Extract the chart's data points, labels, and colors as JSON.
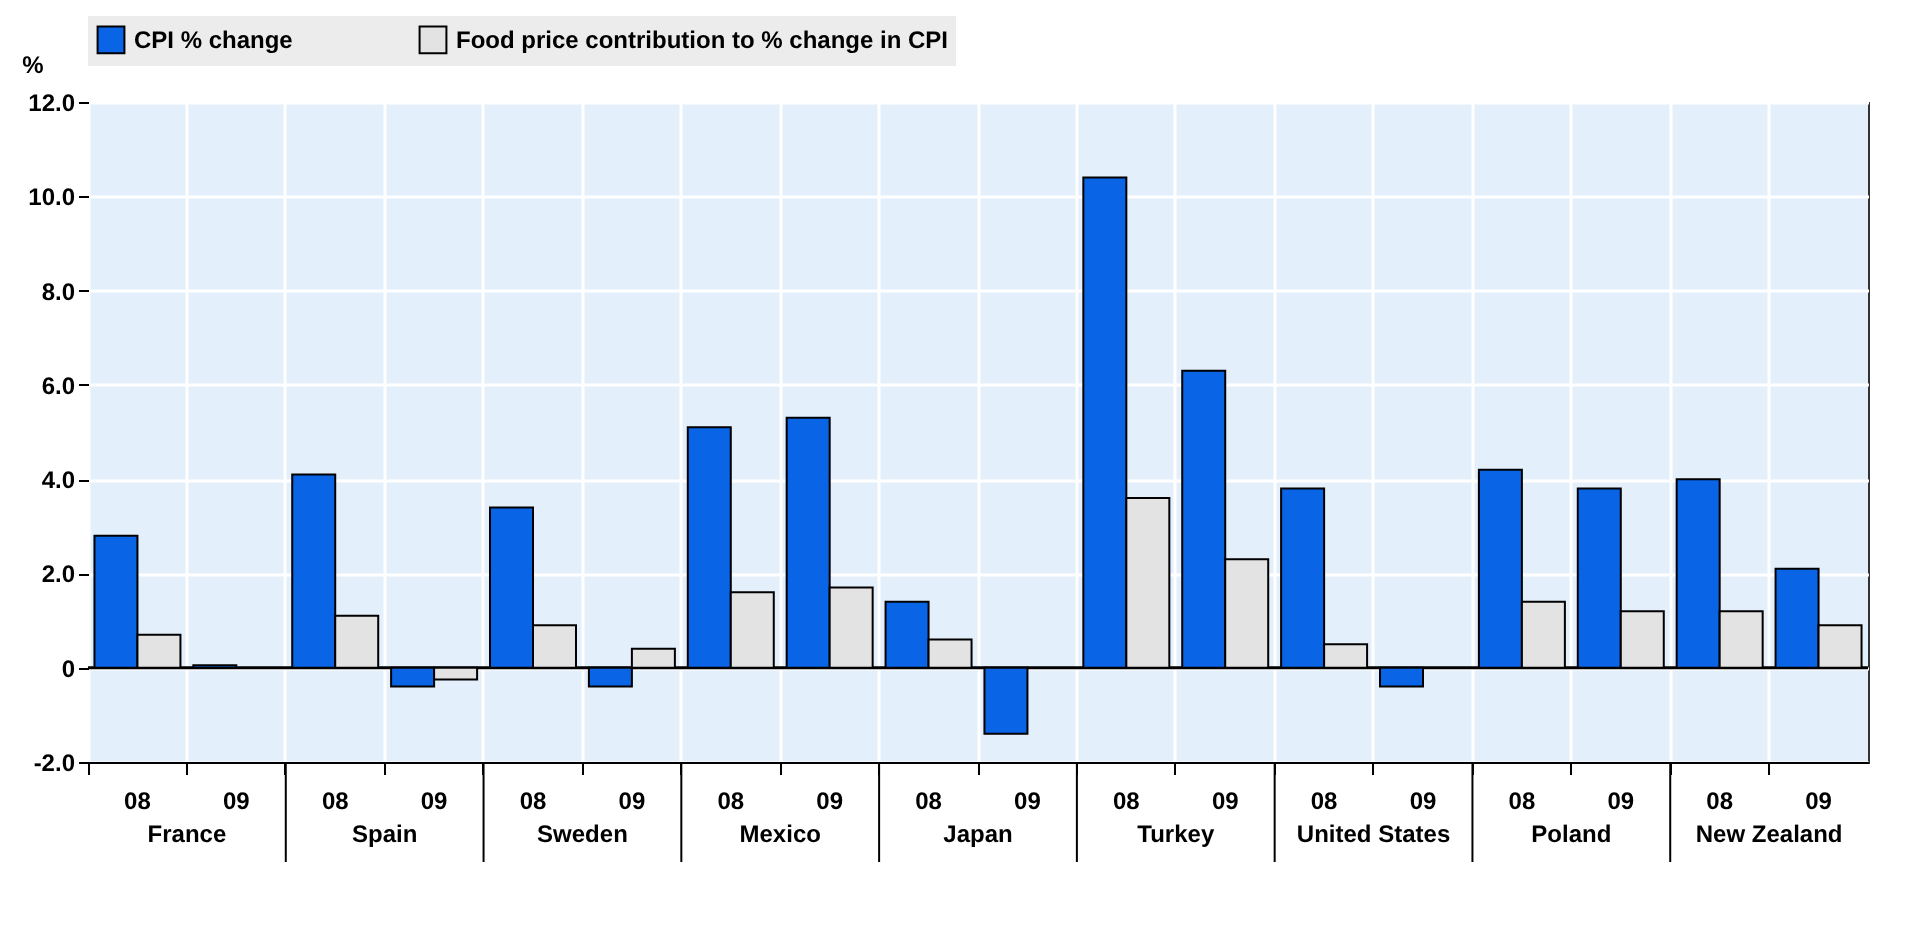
{
  "chart_data": {
    "type": "bar",
    "ylabel": "%",
    "categories": [
      "08",
      "09",
      "08",
      "09",
      "08",
      "09",
      "08",
      "09",
      "08",
      "09",
      "08",
      "09",
      "08",
      "09",
      "08",
      "09",
      "08",
      "09"
    ],
    "series": [
      {
        "name": "CPI % change",
        "color": "#0a64e6",
        "values": [
          2.8,
          0.05,
          4.1,
          -0.4,
          3.4,
          -0.4,
          5.1,
          5.3,
          1.4,
          -1.4,
          10.4,
          6.3,
          3.8,
          -0.4,
          4.2,
          3.8,
          4.0,
          2.1
        ]
      },
      {
        "name": "Food price contribution to % change in CPI",
        "color": "#e3e3e3",
        "values": [
          0.7,
          null,
          1.1,
          -0.25,
          0.9,
          0.4,
          1.6,
          1.7,
          0.6,
          null,
          3.6,
          2.3,
          0.5,
          null,
          1.4,
          1.2,
          1.2,
          0.9
        ]
      }
    ],
    "annotations": [
      "France",
      "Spain",
      "Sweden",
      "Mexico",
      "Japan",
      "Turkey",
      "United States",
      "Poland",
      "New Zealand"
    ],
    "ylim": [
      -2,
      12
    ],
    "yticks": [
      {
        "value": -2,
        "label": "-2.0"
      },
      0,
      {
        "value": 2,
        "label": "2.0"
      },
      {
        "value": 4,
        "label": "4.0"
      },
      {
        "value": 6,
        "label": "6.0"
      },
      {
        "value": 8,
        "label": "8.0"
      },
      {
        "value": 10,
        "label": "10.0"
      },
      {
        "value": 12,
        "label": "12.0"
      }
    ],
    "ref_lines": [
      {
        "axis": "y",
        "value": 0
      }
    ],
    "grid": true,
    "legend": "top"
  }
}
